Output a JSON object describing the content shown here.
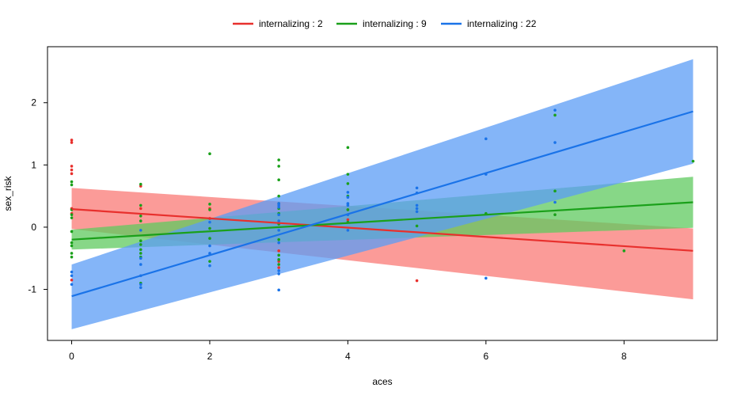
{
  "chart_data": {
    "type": "line",
    "xlabel": "aces",
    "ylabel": "sex_risk",
    "xlim": [
      -0.35,
      9.35
    ],
    "ylim": [
      -1.82,
      2.9
    ],
    "x_ticks": [
      0,
      2,
      4,
      6,
      8
    ],
    "y_ticks": [
      -1,
      0,
      1,
      2
    ],
    "grid": false,
    "legend_position": "top",
    "series": [
      {
        "name": "internalizing : 2",
        "color": "#e8302d",
        "band_color": "#fa7a76",
        "line": {
          "x": [
            0,
            9
          ],
          "y": [
            0.29,
            -0.38
          ]
        },
        "band_lower": {
          "x": [
            0,
            9
          ],
          "y": [
            -0.03,
            -1.16
          ]
        },
        "band_upper": {
          "x": [
            0,
            9
          ],
          "y": [
            0.63,
            -0.02
          ]
        },
        "points": [
          [
            0,
            1.4
          ],
          [
            0,
            1.36
          ],
          [
            0,
            0.98
          ],
          [
            0,
            0.92
          ],
          [
            0,
            0.86
          ],
          [
            0,
            0.3
          ],
          [
            0,
            0.22
          ],
          [
            0,
            -0.85
          ],
          [
            1,
            0.66
          ],
          [
            1,
            0.3
          ],
          [
            2,
            0.3
          ],
          [
            2,
            0.14
          ],
          [
            3,
            -0.38
          ],
          [
            3,
            -0.55
          ],
          [
            3,
            -0.65
          ],
          [
            4,
            0.28
          ],
          [
            4,
            0.12
          ],
          [
            5,
            -0.86
          ]
        ]
      },
      {
        "name": "internalizing : 9",
        "color": "#1aa01a",
        "band_color": "#5fc95f",
        "line": {
          "x": [
            0,
            9
          ],
          "y": [
            -0.2,
            0.4
          ]
        },
        "band_lower": {
          "x": [
            0,
            9
          ],
          "y": [
            -0.36,
            -0.01
          ]
        },
        "band_upper": {
          "x": [
            0,
            9
          ],
          "y": [
            -0.04,
            0.81
          ]
        },
        "points": [
          [
            0,
            0.73
          ],
          [
            0,
            0.68
          ],
          [
            0,
            0.28
          ],
          [
            0,
            0.2
          ],
          [
            0,
            0.15
          ],
          [
            0,
            -0.07
          ],
          [
            0,
            -0.25
          ],
          [
            0,
            -0.3
          ],
          [
            0,
            -0.42
          ],
          [
            0,
            -0.48
          ],
          [
            1,
            0.69
          ],
          [
            1,
            0.35
          ],
          [
            1,
            0.18
          ],
          [
            1,
            0.1
          ],
          [
            1,
            -0.22
          ],
          [
            1,
            -0.28
          ],
          [
            1,
            -0.36
          ],
          [
            1,
            -0.42
          ],
          [
            1,
            -0.48
          ],
          [
            1,
            -0.9
          ],
          [
            2,
            1.18
          ],
          [
            2,
            0.37
          ],
          [
            2,
            0.28
          ],
          [
            2,
            -0.02
          ],
          [
            2,
            -0.18
          ],
          [
            2,
            -0.55
          ],
          [
            3,
            1.08
          ],
          [
            3,
            0.98
          ],
          [
            3,
            0.76
          ],
          [
            3,
            0.5
          ],
          [
            3,
            0.38
          ],
          [
            3,
            0.3
          ],
          [
            3,
            0.22
          ],
          [
            3,
            0.05
          ],
          [
            3,
            -0.2
          ],
          [
            3,
            -0.45
          ],
          [
            3,
            -0.52
          ],
          [
            3,
            -0.6
          ],
          [
            4,
            1.28
          ],
          [
            4,
            0.85
          ],
          [
            4,
            0.7
          ],
          [
            4,
            0.5
          ],
          [
            4,
            0.28
          ],
          [
            4,
            0.08
          ],
          [
            5,
            0.02
          ],
          [
            6,
            0.22
          ],
          [
            7,
            1.8
          ],
          [
            7,
            0.58
          ],
          [
            7,
            0.2
          ],
          [
            8,
            -0.38
          ],
          [
            9,
            1.06
          ]
        ]
      },
      {
        "name": "internalizing : 22",
        "color": "#1a73e8",
        "band_color": "#5b9cf6",
        "line": {
          "x": [
            0,
            9
          ],
          "y": [
            -1.11,
            1.86
          ]
        },
        "band_lower": {
          "x": [
            0,
            9
          ],
          "y": [
            -1.64,
            1.02
          ]
        },
        "band_upper": {
          "x": [
            0,
            9
          ],
          "y": [
            -0.6,
            2.7
          ]
        },
        "points": [
          [
            0,
            -0.72
          ],
          [
            0,
            -0.78
          ],
          [
            0,
            -0.92
          ],
          [
            1,
            -0.05
          ],
          [
            1,
            -0.5
          ],
          [
            1,
            -0.6
          ],
          [
            1,
            -0.78
          ],
          [
            1,
            -0.92
          ],
          [
            1,
            -0.97
          ],
          [
            2,
            0.08
          ],
          [
            2,
            -0.3
          ],
          [
            2,
            -0.42
          ],
          [
            2,
            -0.62
          ],
          [
            3,
            0.38
          ],
          [
            3,
            0.35
          ],
          [
            3,
            0.32
          ],
          [
            3,
            0.2
          ],
          [
            3,
            0.1
          ],
          [
            3,
            -0.05
          ],
          [
            3,
            -0.25
          ],
          [
            3,
            -0.7
          ],
          [
            3,
            -0.75
          ],
          [
            3,
            -1.01
          ],
          [
            4,
            0.56
          ],
          [
            4,
            0.48
          ],
          [
            4,
            0.38
          ],
          [
            4,
            0.35
          ],
          [
            4,
            0.2
          ],
          [
            4,
            -0.05
          ],
          [
            5,
            0.63
          ],
          [
            5,
            0.55
          ],
          [
            5,
            0.35
          ],
          [
            5,
            0.3
          ],
          [
            5,
            0.25
          ],
          [
            6,
            1.42
          ],
          [
            6,
            0.85
          ],
          [
            6,
            -0.82
          ],
          [
            7,
            1.88
          ],
          [
            7,
            1.36
          ],
          [
            7,
            0.4
          ]
        ]
      }
    ]
  }
}
